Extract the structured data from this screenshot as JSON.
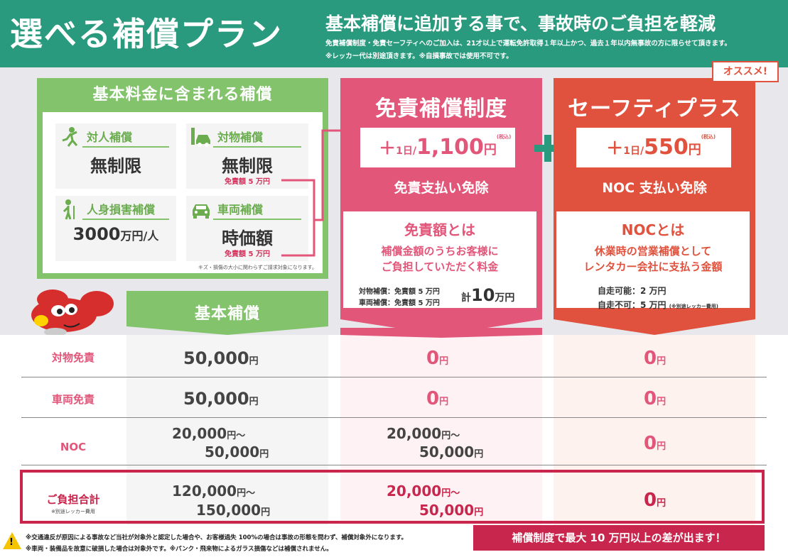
{
  "header": {
    "title": "選べる補償プラン",
    "subtitle": "基本補償に追加する事で、事故時のご負担を軽減",
    "note1": "免責補償制度・免責セーフティへのご加入は、21才以上で運転免許取得１年以上かつ、過去１年以内無事故の方に限らせて頂きます。",
    "note2": "※レッカー代は別途頂きます。※自損事故では使用不可です。"
  },
  "basic": {
    "title": "基本料金に含まれる補償",
    "items": [
      {
        "label": "対人補償",
        "value": "無制限",
        "note": "",
        "icon": "person-icon"
      },
      {
        "label": "対物補償",
        "value": "無制限",
        "note": "免責額 5 万円",
        "icon": "car-crash-icon"
      },
      {
        "label": "人身損害補償",
        "value": "3000",
        "unit": "万円/人",
        "note": "",
        "icon": "injured-person-icon"
      },
      {
        "label": "車両補償",
        "value": "時価額",
        "note": "免責額 5 万円",
        "icon": "car-icon"
      }
    ],
    "footnote": "キズ・損傷の大小に関わらずご請求対象になります。",
    "column_head": "基本補償"
  },
  "menseki": {
    "name": "免責補償制度",
    "plus": "＋",
    "day": "1日/",
    "price": "1,100",
    "yen": "円",
    "tax": "(税込)",
    "waiver": "免責支払い免除",
    "explain_title": "免責額とは",
    "explain_body1": "補償金額のうちお客様に",
    "explain_body2": "ご負担していただく料金",
    "detail1": "対物補償：免責額 5 万円",
    "detail2": "車両補償：免責額 5 万円",
    "total_prefix": "計",
    "total_num": "10",
    "total_unit": "万円"
  },
  "safety": {
    "name": "セーフティプラス",
    "badge": "オススメ!",
    "plus": "＋",
    "day": "1日/",
    "price": "550",
    "yen": "円",
    "tax": "(税込)",
    "waiver": "NOC 支払い免除",
    "explain_title": "NOCとは",
    "explain_body1": "休業時の営業補償として",
    "explain_body2": "レンタカー会社に支払う金額",
    "detail1": "自走可能：2 万円",
    "detail2": "自走不可：5 万円",
    "detail2_note": "(※別途レッカー費用)"
  },
  "table": {
    "rows": [
      {
        "label": "対物免責",
        "basic": "50,000",
        "menseki": "0",
        "safety": "0"
      },
      {
        "label": "車両免責",
        "basic": "50,000",
        "menseki": "0",
        "safety": "0"
      },
      {
        "label": "NOC",
        "basic_a": "20,000",
        "basic_b": "50,000",
        "menseki_a": "20,000",
        "menseki_b": "50,000",
        "safety": "0"
      },
      {
        "label": "ご負担合計",
        "sub": "※別途レッカー費用",
        "basic_a": "120,000",
        "basic_b": "150,000",
        "menseki_a": "20,000",
        "menseki_b": "50,000",
        "safety": "0"
      }
    ],
    "yen": "円",
    "tilde": "円〜"
  },
  "footer": {
    "note1": "※交通違反が原因による事故など当社が対象外と認定した場合や、お客様過失 100%の場合は事故の形態を問わず、補償対象外になります。",
    "note2": "※車両・装備品を故意に破損した場合は対象外です。※パンク・飛来物によるガラス損傷などは補償されません。",
    "banner": "補償制度で最大 10 万円以上の差が出ます！",
    "warning_mark": "!"
  },
  "colors": {
    "green": "#2a9a7e",
    "light_green": "#82c36c",
    "pink": "#e2567a",
    "orange": "#e0523e",
    "crimson": "#c8264d"
  }
}
